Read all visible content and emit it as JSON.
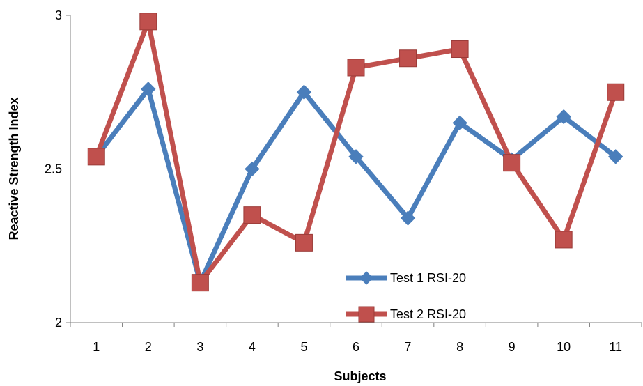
{
  "chart_data": {
    "type": "line",
    "title": "",
    "xlabel": "Subjects",
    "ylabel": "Reactive Strength Index",
    "categories": [
      "1",
      "2",
      "3",
      "4",
      "5",
      "6",
      "7",
      "8",
      "9",
      "10",
      "11"
    ],
    "ylim": [
      2,
      3
    ],
    "yticks": [
      "2",
      "2.5",
      "3"
    ],
    "grid": false,
    "legend_position": "bottom-right",
    "series": [
      {
        "name": "Test 1 RSI-20",
        "color": "#4A7EBB",
        "marker": "diamond",
        "values": [
          2.54,
          2.76,
          2.13,
          2.5,
          2.75,
          2.54,
          2.34,
          2.65,
          2.53,
          2.67,
          2.54
        ]
      },
      {
        "name": "Test 2 RSI-20",
        "color": "#C0504D",
        "marker": "square",
        "values": [
          2.54,
          2.98,
          2.13,
          2.35,
          2.26,
          2.83,
          2.86,
          2.89,
          2.52,
          2.27,
          2.75
        ]
      }
    ]
  }
}
